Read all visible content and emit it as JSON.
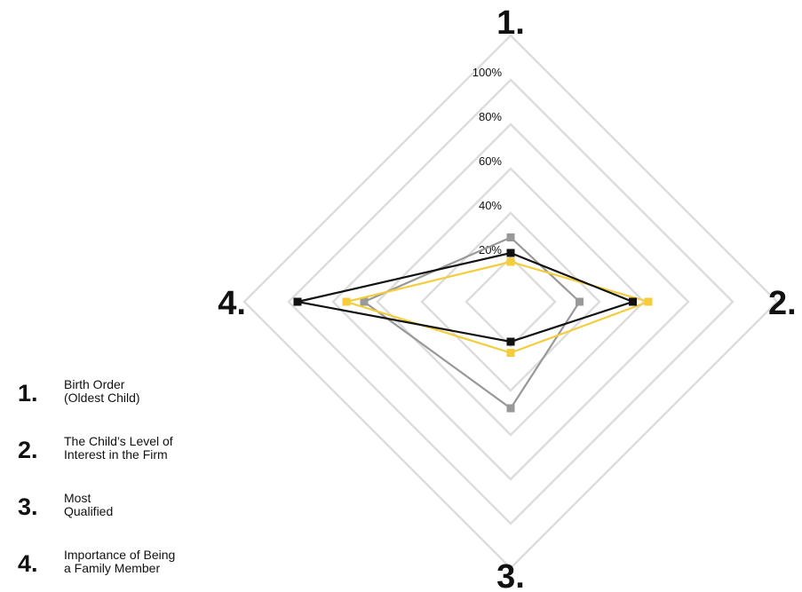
{
  "chart_data": {
    "type": "radar",
    "axes": [
      "1.",
      "2.",
      "3.",
      "4."
    ],
    "rings": [
      20,
      40,
      60,
      80,
      100,
      120
    ],
    "tick_labels": [
      "20%",
      "40%",
      "60%",
      "80%",
      "100%"
    ],
    "range": [
      0,
      120
    ],
    "grid": true,
    "series": [
      {
        "color": "#111111",
        "values": [
          22,
          55,
          18,
          96
        ]
      },
      {
        "color": "#999999",
        "values": [
          29,
          31,
          48,
          66
        ]
      },
      {
        "color": "#f5cc3a",
        "values": [
          18,
          62,
          23,
          74
        ]
      }
    ],
    "legend": [
      {
        "number": "1.",
        "lines": [
          "Birth Order",
          "(Oldest Child)"
        ]
      },
      {
        "number": "2.",
        "lines": [
          "The Child’s Level of",
          "Interest in the Firm"
        ]
      },
      {
        "number": "3.",
        "lines": [
          "Most",
          "Qualified"
        ]
      },
      {
        "number": "4.",
        "lines": [
          "Importance of Being",
          "a Family Member"
        ]
      }
    ]
  },
  "colors": {
    "grid": "#dddddd",
    "text": "#111111"
  }
}
